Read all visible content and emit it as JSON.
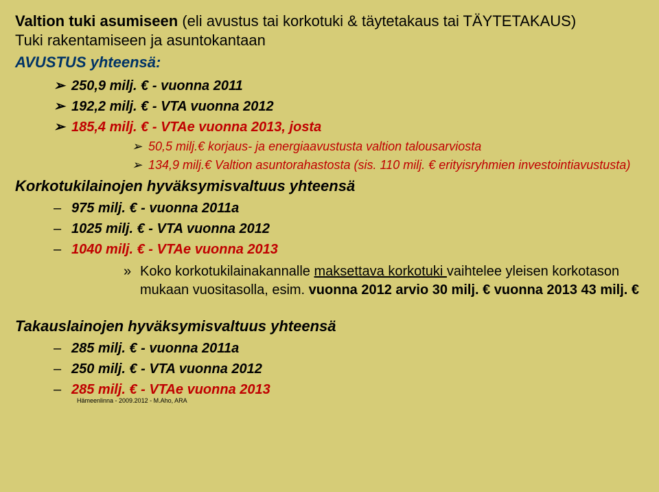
{
  "title": {
    "main": "Valtion tuki asumiseen",
    "paren": "(eli avustus tai korkotuki & täytetakaus tai TÄYTETAKAUS)",
    "line2": "Tuki rakentamiseen ja asuntokantaan"
  },
  "avustus": {
    "heading": "AVUSTUS yhteensä:",
    "items": [
      "250,9 milj. €  - vuonna 2011",
      "192,2 milj. €  - VTA vuonna 2012"
    ],
    "item_red": "185,4 milj. €  - VTAe vuonna 2013, josta",
    "sub": [
      "50,5 milj.€ korjaus- ja energiaavustusta valtion talousarviosta",
      "134,9 milj.€ Valtion asuntorahastosta (sis. 110 milj. € erityisryhmien investointiavustusta)"
    ]
  },
  "korkotuki": {
    "heading": "Korkotukilainojen hyväksymisvaltuus  yhteensä",
    "items": [
      "975 milj. €  - vuonna 2011a",
      "1025 milj. €  - VTA vuonna 2012"
    ],
    "item_red": "1040 milj. €  - VTAe vuonna 2013",
    "quote_parts": {
      "p1": "Koko korkotukilainakannalle ",
      "p2": "maksettava korkotuki ",
      "p3": "vaihtelee yleisen korkotason mukaan vuositasolla, esim. ",
      "p4": "vuonna 2012 arvio 30 milj. € vuonna 2013 43 milj. €"
    }
  },
  "takaus": {
    "heading": "Takauslainojen hyväksymisvaltuus yhteensä",
    "items": [
      "285 milj. €  - vuonna 2011a",
      "250 milj. €  - VTA vuonna 2012"
    ],
    "item_red": "285 milj. €  - VTAe vuonna 2013"
  },
  "footer": "Hämeenlinna - 2009.2012 - M.Aho, ARA",
  "glyphs": {
    "arrow": "➢",
    "dash": "–",
    "raquo": "»"
  },
  "colors": {
    "background": "#d6cc77",
    "text": "#000000",
    "blue": "#003366",
    "red": "#c00000"
  }
}
